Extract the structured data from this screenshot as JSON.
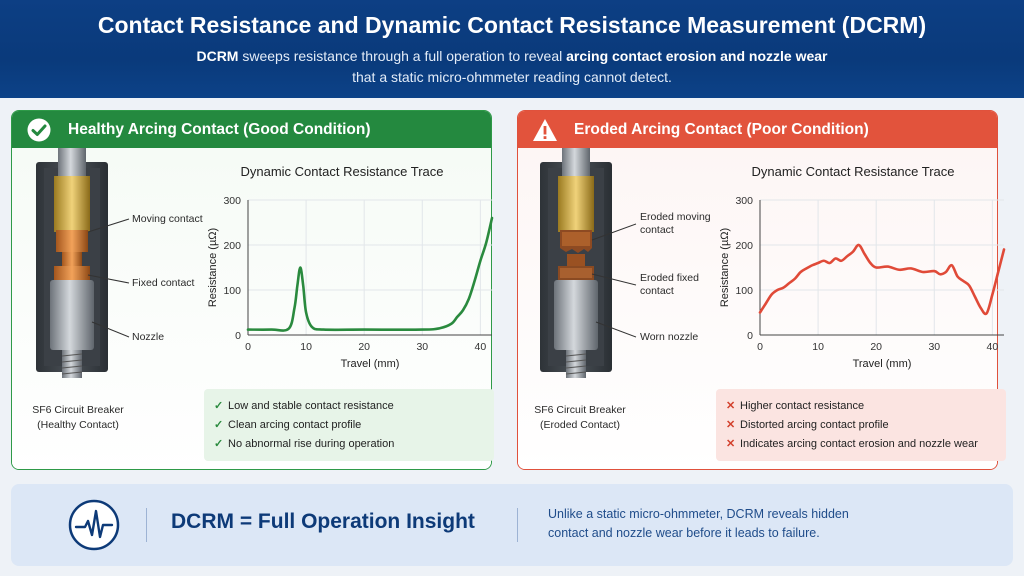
{
  "header": {
    "title": "Contact Resistance and Dynamic Contact Resistance Measurement (DCRM)",
    "subtitle_line1": {
      "b1": "DCRM",
      "t1": " sweeps resistance through a full operation to reveal ",
      "b2": "arcing contact erosion and nozzle wear"
    },
    "subtitle_line2": {
      "t1": "that a static micro-ohmmeter ",
      "b1": "reading cannot",
      "t2": " detect."
    }
  },
  "panels": {
    "good": {
      "title": "Healthy Arcing Contact (Good Condition)",
      "icon": "check-circle-icon",
      "labels": [
        "Moving contact",
        "Fixed contact",
        "Nozzle"
      ],
      "caption": [
        "SF6 Circuit Breaker",
        "(Healthy Contact)"
      ],
      "chart_title": "Dynamic Contact Resistance Trace",
      "checks": [
        "Low and stable contact resistance",
        "Clean arcing contact profile",
        "No abnormal rise during operation"
      ],
      "accent": "#24893f"
    },
    "bad": {
      "title": "Eroded Arcing Contact (Poor Condition)",
      "icon": "warning-triangle-icon",
      "labels": [
        "Eroded moving\ncontact",
        "Eroded fixed\ncontact",
        "Worn nozzle"
      ],
      "caption": [
        "SF6 Circuit Breaker",
        "(Eroded Contact)"
      ],
      "chart_title": "Dynamic Contact Resistance Trace",
      "checks": [
        "Higher contact resistance",
        "Distorted arcing contact profile",
        "Indicates arcing contact erosion and nozzle wear"
      ],
      "accent": "#e2533c"
    }
  },
  "footer": {
    "icon": "waveform-circle-icon",
    "title": "DCRM = Full Operation Insight",
    "text_line1": "Unlike a static micro-ohmmeter, DCRM reveals hidden",
    "text_line2": "contact and nozzle wear before it leads to failure."
  },
  "chart_data": [
    {
      "type": "line",
      "title": "Dynamic Contact Resistance Trace",
      "xlabel": "Travel (mm)",
      "ylabel": "Resistance (µΩ)",
      "xlim": [
        0,
        42
      ],
      "ylim": [
        0,
        300
      ],
      "xticks": [
        0,
        10,
        20,
        30,
        40
      ],
      "yticks": [
        0,
        100,
        200,
        300
      ],
      "grid": true,
      "color": "#2a8a3e",
      "x": [
        0,
        4,
        7,
        8,
        8.5,
        9,
        9.5,
        10,
        11,
        13,
        20,
        30,
        33,
        35,
        36,
        37,
        38,
        39,
        40,
        41,
        42
      ],
      "y": [
        12,
        12,
        14,
        60,
        110,
        150,
        110,
        50,
        18,
        12,
        12,
        12,
        15,
        25,
        40,
        55,
        80,
        120,
        165,
        205,
        260
      ]
    },
    {
      "type": "line",
      "title": "Dynamic Contact Resistance Trace",
      "xlabel": "Travel (mm)",
      "ylabel": "Resistance (µΩ)",
      "xlim": [
        0,
        42
      ],
      "ylim": [
        0,
        300
      ],
      "xticks": [
        0,
        10,
        20,
        30,
        40
      ],
      "yticks": [
        0,
        100,
        200,
        300
      ],
      "grid": true,
      "color": "#e04a38",
      "x": [
        0,
        1,
        2,
        3,
        4,
        5,
        6,
        7,
        8,
        9,
        10,
        11,
        12,
        13,
        14,
        15,
        16,
        17,
        18,
        19,
        20,
        22,
        24,
        26,
        28,
        30,
        31,
        32,
        33,
        34,
        35,
        36,
        37,
        38,
        39,
        40,
        41,
        42
      ],
      "y": [
        50,
        70,
        90,
        100,
        105,
        115,
        125,
        140,
        148,
        155,
        160,
        165,
        160,
        170,
        165,
        175,
        185,
        200,
        180,
        160,
        150,
        152,
        145,
        148,
        140,
        142,
        135,
        140,
        155,
        130,
        120,
        110,
        85,
        60,
        48,
        90,
        140,
        190
      ]
    }
  ]
}
